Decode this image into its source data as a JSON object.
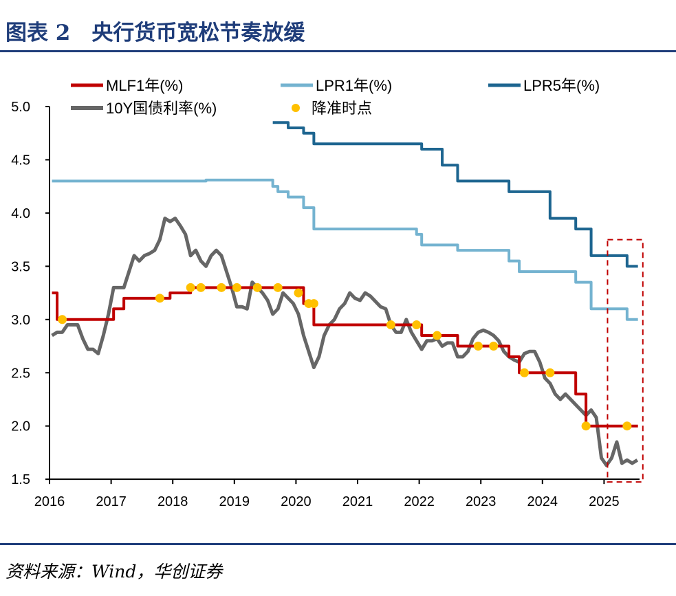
{
  "title": "图表 2　央行货币宽松节奏放缓",
  "source": "资料来源：Wind，华创证券",
  "colors": {
    "mlf": "#c00000",
    "lpr1": "#74b3d0",
    "lpr5": "#1d6590",
    "y10": "#666666",
    "rrr": "#ffc000",
    "rule": "#1f3d7a",
    "box": "#c00000"
  },
  "chart_data": {
    "type": "line",
    "title": "",
    "xlabel": "",
    "ylabel": "",
    "xlim": [
      "2016-01",
      "2025-12"
    ],
    "ylim": [
      1.5,
      5.0
    ],
    "x_ticks": [
      "2016",
      "2017",
      "2018",
      "2019",
      "2020",
      "2021",
      "2022",
      "2023",
      "2024",
      "2025"
    ],
    "y_ticks": [
      "5.0",
      "4.5",
      "4.0",
      "3.5",
      "3.0",
      "2.5",
      "2.0",
      "1.5"
    ],
    "grid": false,
    "legend_placement": "top",
    "series": [
      {
        "name": "MLF1年(%)",
        "key": "mlf",
        "step": true,
        "points": [
          [
            "2016-01",
            3.25
          ],
          [
            "2016-02",
            3.0
          ],
          [
            "2017-01",
            3.1
          ],
          [
            "2017-03",
            3.2
          ],
          [
            "2017-12",
            3.25
          ],
          [
            "2018-04",
            3.3
          ],
          [
            "2020-02",
            3.15
          ],
          [
            "2020-04",
            2.95
          ],
          [
            "2022-01",
            2.85
          ],
          [
            "2022-08",
            2.75
          ],
          [
            "2023-06",
            2.65
          ],
          [
            "2023-08",
            2.5
          ],
          [
            "2024-07",
            2.3
          ],
          [
            "2024-09",
            2.0
          ],
          [
            "2025-07",
            2.0
          ]
        ]
      },
      {
        "name": "LPR1年(%)",
        "key": "lpr1",
        "step": true,
        "points": [
          [
            "2016-01",
            4.3
          ],
          [
            "2018-07",
            4.31
          ],
          [
            "2019-08",
            4.25
          ],
          [
            "2019-09",
            4.2
          ],
          [
            "2019-11",
            4.15
          ],
          [
            "2020-02",
            4.05
          ],
          [
            "2020-04",
            3.85
          ],
          [
            "2021-12",
            3.8
          ],
          [
            "2022-01",
            3.7
          ],
          [
            "2022-08",
            3.65
          ],
          [
            "2023-06",
            3.55
          ],
          [
            "2023-08",
            3.45
          ],
          [
            "2024-07",
            3.35
          ],
          [
            "2024-10",
            3.1
          ],
          [
            "2025-05",
            3.0
          ],
          [
            "2025-07",
            3.0
          ]
        ]
      },
      {
        "name": "LPR5年(%)",
        "key": "lpr5",
        "step": true,
        "points": [
          [
            "2019-08",
            4.85
          ],
          [
            "2019-11",
            4.8
          ],
          [
            "2020-02",
            4.75
          ],
          [
            "2020-04",
            4.65
          ],
          [
            "2022-01",
            4.6
          ],
          [
            "2022-05",
            4.45
          ],
          [
            "2022-08",
            4.3
          ],
          [
            "2023-06",
            4.2
          ],
          [
            "2024-02",
            3.95
          ],
          [
            "2024-07",
            3.85
          ],
          [
            "2024-10",
            3.6
          ],
          [
            "2025-05",
            3.5
          ],
          [
            "2025-07",
            3.5
          ]
        ]
      },
      {
        "name": "10Y国债利率(%)",
        "key": "y10",
        "step": false,
        "points": [
          [
            "2016-01",
            2.85
          ],
          [
            "2016-02",
            2.88
          ],
          [
            "2016-03",
            2.88
          ],
          [
            "2016-04",
            2.95
          ],
          [
            "2016-05",
            2.95
          ],
          [
            "2016-06",
            2.95
          ],
          [
            "2016-07",
            2.82
          ],
          [
            "2016-08",
            2.72
          ],
          [
            "2016-09",
            2.72
          ],
          [
            "2016-10",
            2.68
          ],
          [
            "2016-11",
            2.85
          ],
          [
            "2016-12",
            3.05
          ],
          [
            "2017-01",
            3.3
          ],
          [
            "2017-02",
            3.3
          ],
          [
            "2017-03",
            3.3
          ],
          [
            "2017-04",
            3.45
          ],
          [
            "2017-05",
            3.6
          ],
          [
            "2017-06",
            3.55
          ],
          [
            "2017-07",
            3.6
          ],
          [
            "2017-08",
            3.62
          ],
          [
            "2017-09",
            3.65
          ],
          [
            "2017-10",
            3.75
          ],
          [
            "2017-11",
            3.95
          ],
          [
            "2017-12",
            3.92
          ],
          [
            "2018-01",
            3.95
          ],
          [
            "2018-02",
            3.88
          ],
          [
            "2018-03",
            3.8
          ],
          [
            "2018-04",
            3.6
          ],
          [
            "2018-05",
            3.65
          ],
          [
            "2018-06",
            3.55
          ],
          [
            "2018-07",
            3.5
          ],
          [
            "2018-08",
            3.6
          ],
          [
            "2018-09",
            3.65
          ],
          [
            "2018-10",
            3.6
          ],
          [
            "2018-11",
            3.45
          ],
          [
            "2018-12",
            3.3
          ],
          [
            "2019-01",
            3.12
          ],
          [
            "2019-02",
            3.12
          ],
          [
            "2019-03",
            3.1
          ],
          [
            "2019-04",
            3.35
          ],
          [
            "2019-05",
            3.3
          ],
          [
            "2019-06",
            3.25
          ],
          [
            "2019-07",
            3.18
          ],
          [
            "2019-08",
            3.05
          ],
          [
            "2019-09",
            3.1
          ],
          [
            "2019-10",
            3.25
          ],
          [
            "2019-11",
            3.2
          ],
          [
            "2019-12",
            3.15
          ],
          [
            "2020-01",
            3.05
          ],
          [
            "2020-02",
            2.85
          ],
          [
            "2020-03",
            2.7
          ],
          [
            "2020-04",
            2.55
          ],
          [
            "2020-05",
            2.65
          ],
          [
            "2020-06",
            2.85
          ],
          [
            "2020-07",
            2.95
          ],
          [
            "2020-08",
            3.0
          ],
          [
            "2020-09",
            3.1
          ],
          [
            "2020-10",
            3.15
          ],
          [
            "2020-11",
            3.25
          ],
          [
            "2020-12",
            3.2
          ],
          [
            "2021-01",
            3.18
          ],
          [
            "2021-02",
            3.25
          ],
          [
            "2021-03",
            3.22
          ],
          [
            "2021-04",
            3.17
          ],
          [
            "2021-05",
            3.12
          ],
          [
            "2021-06",
            3.1
          ],
          [
            "2021-07",
            2.95
          ],
          [
            "2021-08",
            2.88
          ],
          [
            "2021-09",
            2.88
          ],
          [
            "2021-10",
            3.0
          ],
          [
            "2021-11",
            2.88
          ],
          [
            "2021-12",
            2.8
          ],
          [
            "2022-01",
            2.72
          ],
          [
            "2022-02",
            2.8
          ],
          [
            "2022-03",
            2.8
          ],
          [
            "2022-04",
            2.82
          ],
          [
            "2022-05",
            2.75
          ],
          [
            "2022-06",
            2.78
          ],
          [
            "2022-07",
            2.78
          ],
          [
            "2022-08",
            2.65
          ],
          [
            "2022-09",
            2.65
          ],
          [
            "2022-10",
            2.7
          ],
          [
            "2022-11",
            2.82
          ],
          [
            "2022-12",
            2.88
          ],
          [
            "2023-01",
            2.9
          ],
          [
            "2023-02",
            2.88
          ],
          [
            "2023-03",
            2.85
          ],
          [
            "2023-04",
            2.8
          ],
          [
            "2023-05",
            2.7
          ],
          [
            "2023-06",
            2.65
          ],
          [
            "2023-07",
            2.62
          ],
          [
            "2023-08",
            2.6
          ],
          [
            "2023-09",
            2.68
          ],
          [
            "2023-10",
            2.7
          ],
          [
            "2023-11",
            2.7
          ],
          [
            "2023-12",
            2.6
          ],
          [
            "2024-01",
            2.45
          ],
          [
            "2024-02",
            2.4
          ],
          [
            "2024-03",
            2.3
          ],
          [
            "2024-04",
            2.25
          ],
          [
            "2024-05",
            2.3
          ],
          [
            "2024-06",
            2.25
          ],
          [
            "2024-07",
            2.2
          ],
          [
            "2024-08",
            2.15
          ],
          [
            "2024-09",
            2.1
          ],
          [
            "2024-10",
            2.15
          ],
          [
            "2024-11",
            2.08
          ],
          [
            "2024-12",
            1.7
          ],
          [
            "2025-01",
            1.63
          ],
          [
            "2025-02",
            1.7
          ],
          [
            "2025-03",
            1.85
          ],
          [
            "2025-04",
            1.65
          ],
          [
            "2025-05",
            1.68
          ],
          [
            "2025-06",
            1.65
          ],
          [
            "2025-07",
            1.68
          ]
        ]
      }
    ],
    "rrr_cuts": {
      "name": "降准时点",
      "points": [
        [
          "2016-03",
          3.0
        ],
        [
          "2017-10",
          3.2
        ],
        [
          "2018-04",
          3.3
        ],
        [
          "2018-06",
          3.3
        ],
        [
          "2018-10",
          3.3
        ],
        [
          "2019-01",
          3.3
        ],
        [
          "2019-05",
          3.3
        ],
        [
          "2019-09",
          3.3
        ],
        [
          "2020-01",
          3.25
        ],
        [
          "2020-03",
          3.15
        ],
        [
          "2020-04",
          3.15
        ],
        [
          "2021-07",
          2.95
        ],
        [
          "2021-12",
          2.95
        ],
        [
          "2022-04",
          2.85
        ],
        [
          "2022-12",
          2.75
        ],
        [
          "2023-03",
          2.75
        ],
        [
          "2023-09",
          2.5
        ],
        [
          "2024-02",
          2.5
        ],
        [
          "2024-09",
          2.0
        ],
        [
          "2025-05",
          2.0
        ]
      ]
    },
    "highlight_box": {
      "x": [
        "2025-02",
        "2025-07"
      ],
      "y": [
        1.5,
        3.75
      ],
      "style": "dashed"
    }
  }
}
